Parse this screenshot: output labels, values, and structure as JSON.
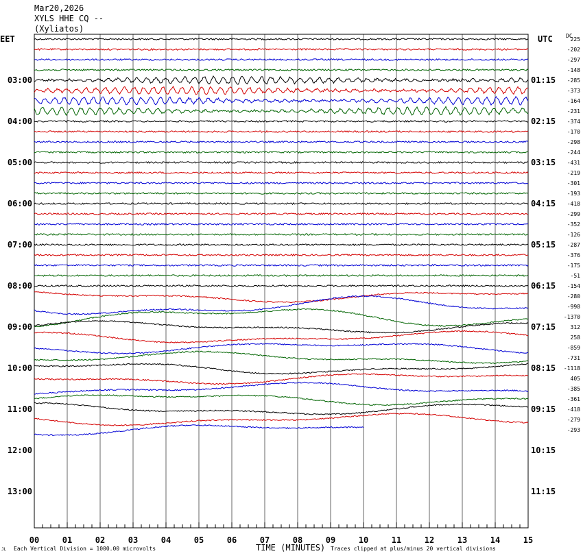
{
  "header": {
    "date": "Mar20,2026",
    "station": "XYLS HHE CQ --",
    "name": "(Xyliatos)"
  },
  "left_zone": "EET",
  "right_zone": "UTC",
  "dc_label": "DC",
  "footer": {
    "scale": "Each Vertical Division = 1000.00 microvolts",
    "xlabel": "TIME (MINUTES)",
    "clip": "Traces clipped at plus/minus 20 vertical divisions",
    "corner": "JL"
  },
  "chart_data": {
    "type": "line",
    "title": "XYLS HHE CQ --",
    "xlabel": "TIME (MINUTES)",
    "xlim": [
      0,
      15
    ],
    "x_ticks": [
      "00",
      "01",
      "02",
      "03",
      "04",
      "05",
      "06",
      "07",
      "08",
      "09",
      "10",
      "11",
      "12",
      "13",
      "14",
      "15"
    ],
    "left_time_labels": [
      "03:00",
      "04:00",
      "05:00",
      "06:00",
      "07:00",
      "08:00",
      "09:00",
      "10:00",
      "11:00",
      "12:00",
      "13:00"
    ],
    "right_time_labels": [
      "01:15",
      "02:15",
      "03:15",
      "04:15",
      "05:15",
      "06:15",
      "07:15",
      "08:15",
      "09:15",
      "10:15",
      "11:15"
    ],
    "trace_colors": [
      "#000000",
      "#d40000",
      "#0000d4",
      "#006400"
    ],
    "dc_offsets": [
      225,
      -202,
      -297,
      -148,
      -285,
      -373,
      -164,
      -231,
      -374,
      -170,
      -298,
      -244,
      -431,
      -219,
      -301,
      -193,
      -418,
      -299,
      -352,
      -126,
      -287,
      -376,
      -175,
      -51,
      -154,
      -280,
      -998,
      -1370,
      312,
      258,
      -859,
      -731,
      -1118,
      405,
      -385,
      -361,
      -418,
      -279,
      -293
    ],
    "last_trace_end_minute": 10.0,
    "grid": true
  }
}
